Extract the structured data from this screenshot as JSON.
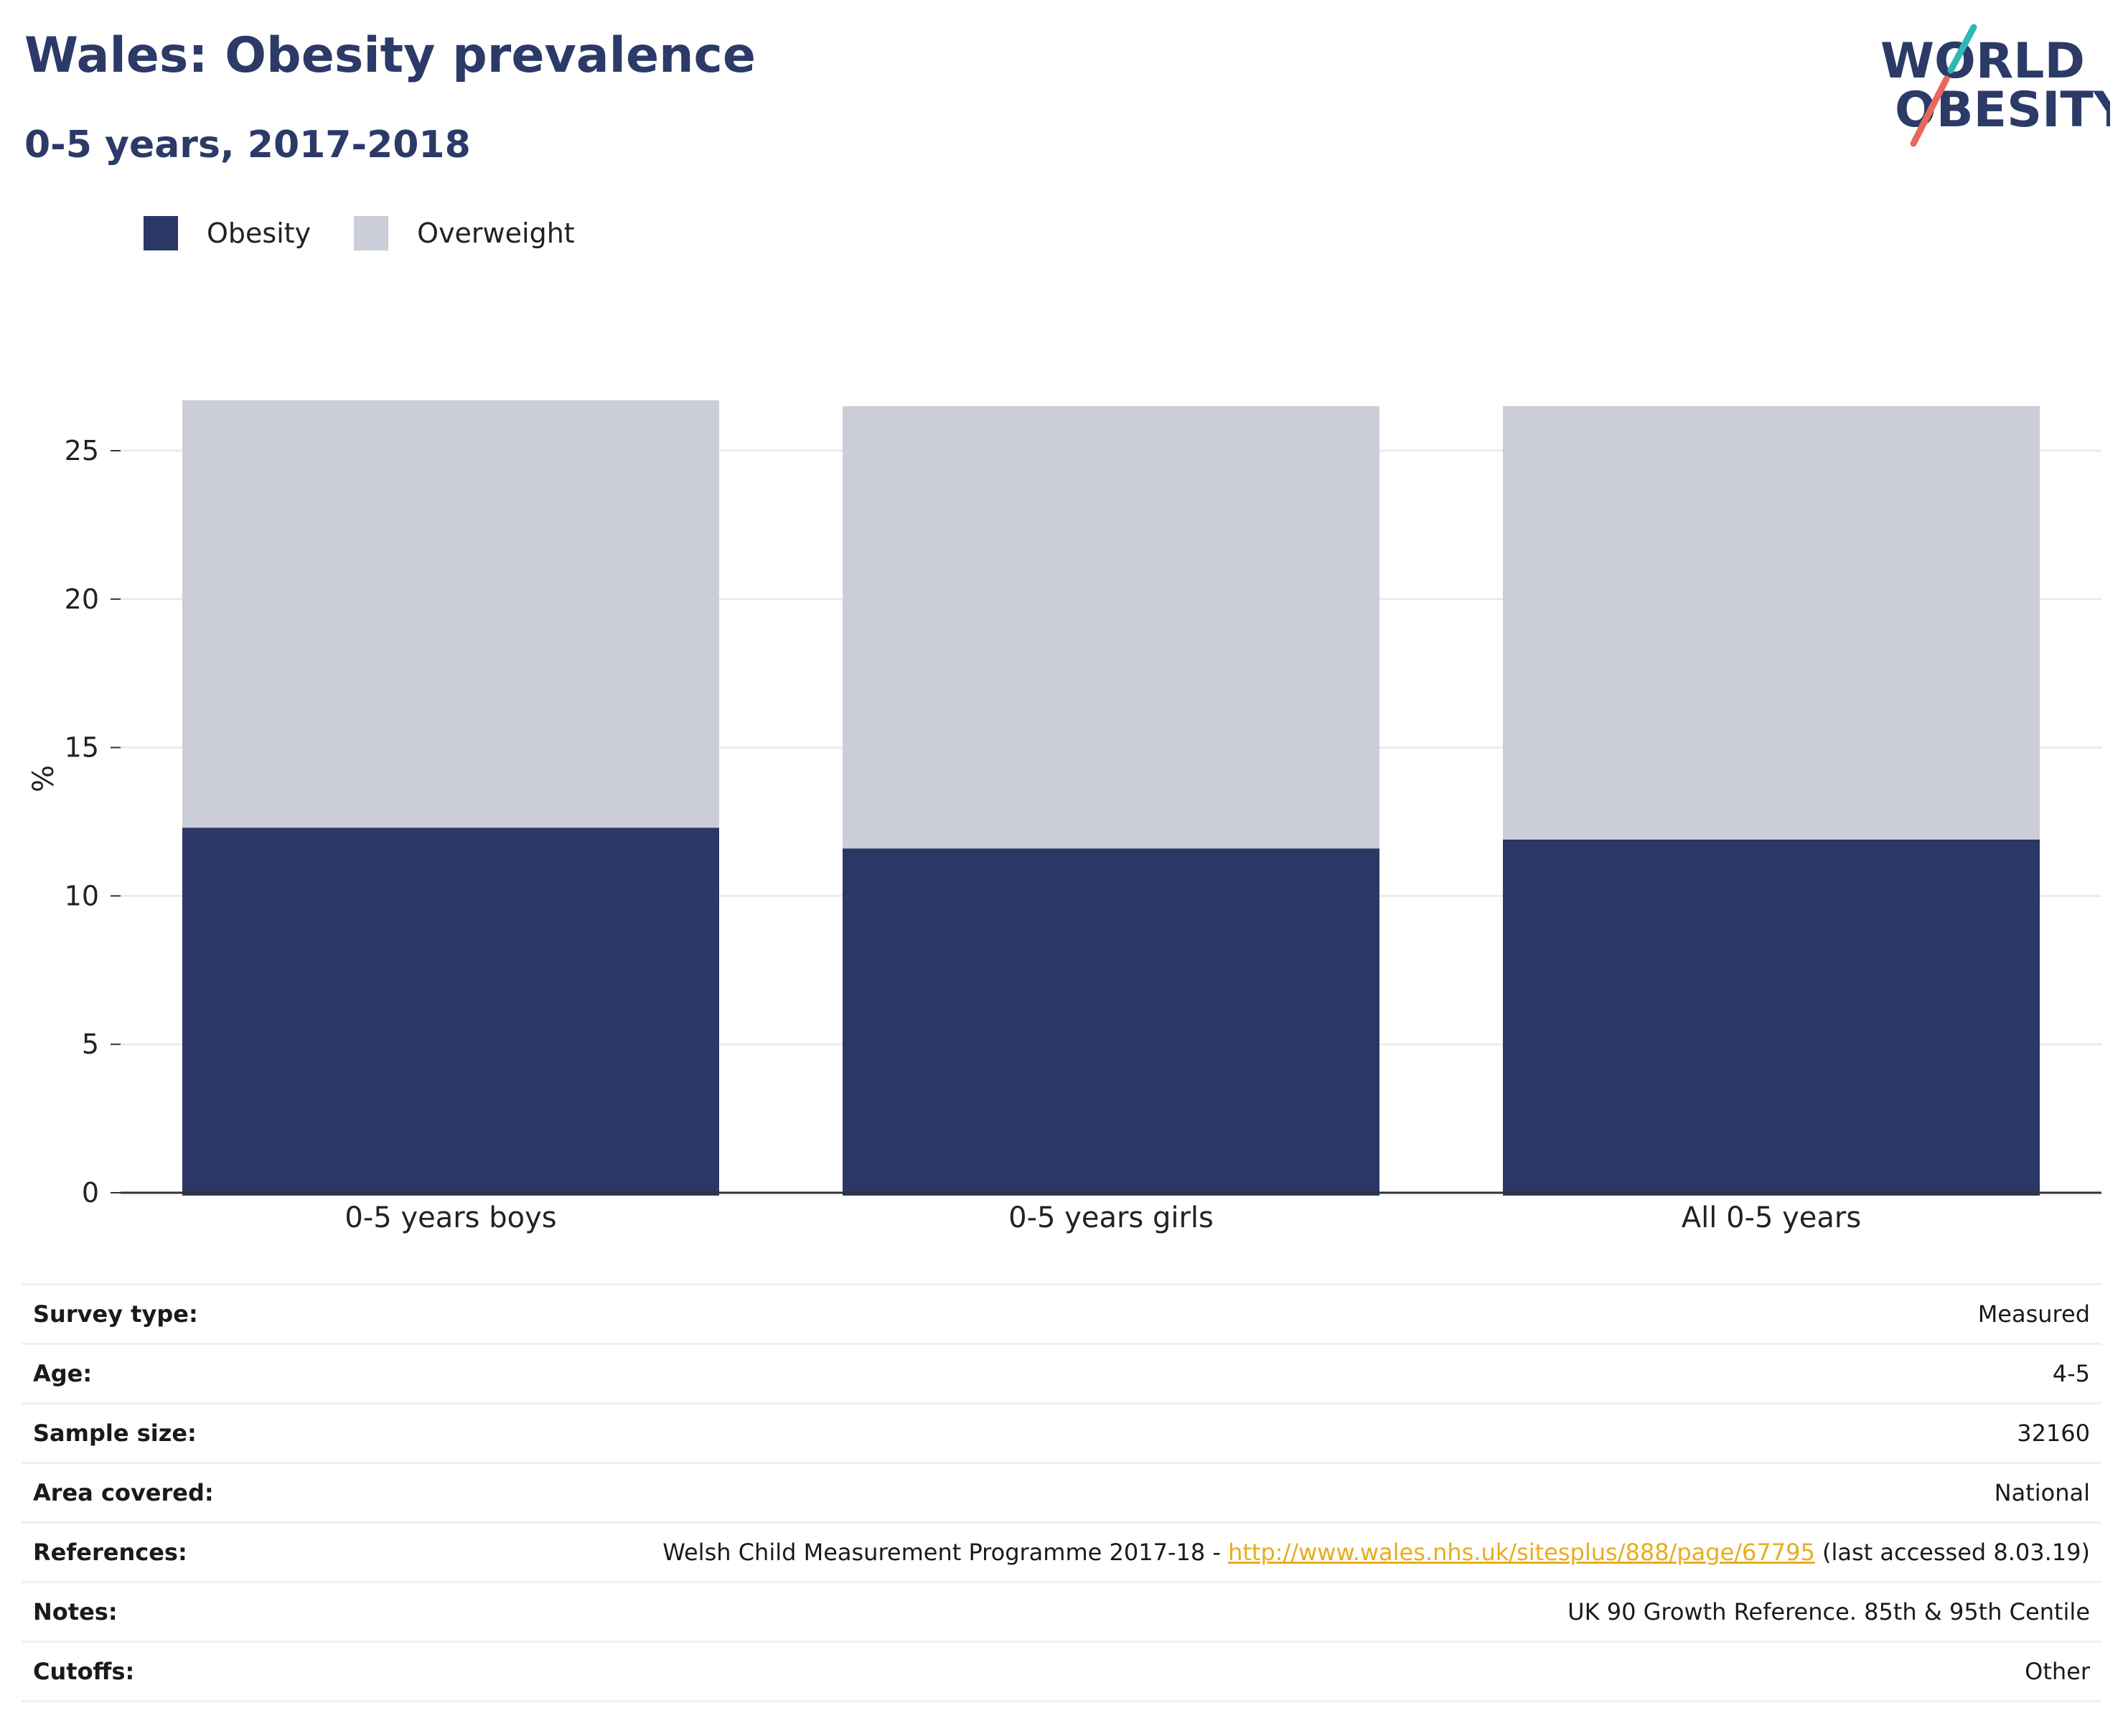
{
  "header": {
    "title": "Wales: Obesity prevalence",
    "subtitle": "0-5 years, 2017-2018"
  },
  "logo": {
    "line1": "WORLD",
    "line2": "OBESITY",
    "colors": {
      "text": "#2b3a67",
      "accent_teal": "#2fb9b5",
      "accent_red": "#e8695b"
    }
  },
  "colors": {
    "obesity": "#2b3764",
    "overweight": "#cbcdd8",
    "link": "#e8ad1d"
  },
  "chart_data": {
    "type": "bar",
    "stacked": true,
    "categories": [
      "0-5 years boys",
      "0-5 years girls",
      "All 0-5 years"
    ],
    "series": [
      {
        "name": "Obesity",
        "values": [
          12.3,
          11.6,
          11.9
        ]
      },
      {
        "name": "Overweight",
        "values": [
          14.4,
          14.9,
          14.6
        ]
      }
    ],
    "title": "Wales: Obesity prevalence",
    "subtitle": "0-5 years, 2017-2018",
    "xlabel": "",
    "ylabel": "%",
    "ylim": [
      0,
      27
    ],
    "yticks": [
      0,
      5,
      10,
      15,
      20,
      25
    ],
    "grid": true,
    "legend_position": "top-left"
  },
  "info": {
    "rows": [
      {
        "key": "Survey type:",
        "value": "Measured"
      },
      {
        "key": "Age:",
        "value": "4-5"
      },
      {
        "key": "Sample size:",
        "value": "32160"
      },
      {
        "key": "Area covered:",
        "value": "National"
      },
      {
        "key": "References:",
        "value": ""
      },
      {
        "key": "Notes:",
        "value": "UK 90 Growth Reference. 85th & 95th Centile"
      },
      {
        "key": "Cutoffs:",
        "value": "Other"
      }
    ],
    "reference": {
      "prefix": "Welsh Child Measurement Programme 2017-18 - ",
      "link_text": "http://www.wales.nhs.uk/sitesplus/888/page/67795",
      "suffix": " (last accessed 8.03.19)"
    }
  }
}
